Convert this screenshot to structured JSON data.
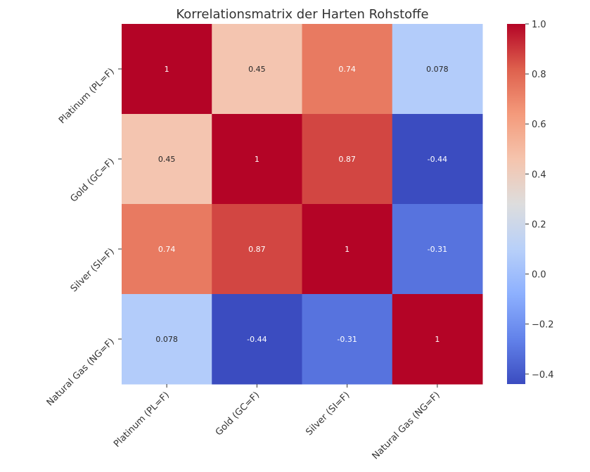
{
  "chart_data": {
    "type": "heatmap",
    "title": "Korrelationsmatrix der Harten Rohstoffe",
    "rows": [
      "Platinum (PL=F)",
      "Gold (GC=F)",
      "Silver (SI=F)",
      "Natural Gas (NG=F)"
    ],
    "columns": [
      "Platinum (PL=F)",
      "Gold (GC=F)",
      "Silver (SI=F)",
      "Natural Gas (NG=F)"
    ],
    "values": [
      [
        1,
        0.45,
        0.74,
        0.078
      ],
      [
        0.45,
        1,
        0.87,
        -0.44
      ],
      [
        0.74,
        0.87,
        1,
        -0.31
      ],
      [
        0.078,
        -0.44,
        -0.31,
        1
      ]
    ],
    "cell_labels": [
      [
        "1",
        "0.45",
        "0.74",
        "0.078"
      ],
      [
        "0.45",
        "1",
        "0.87",
        "-0.44"
      ],
      [
        "0.74",
        "0.87",
        "1",
        "-0.31"
      ],
      [
        "0.078",
        "-0.44",
        "-0.31",
        "1"
      ]
    ],
    "colormap": "coolwarm",
    "colorbar": {
      "vmin": -0.44,
      "vmax": 1.0,
      "ticks": [
        1.0,
        0.8,
        0.6,
        0.4,
        0.2,
        0.0,
        -0.2,
        -0.4
      ],
      "tick_labels": [
        "1.0",
        "0.8",
        "0.6",
        "0.4",
        "0.2",
        "0.0",
        "−0.2",
        "−0.4"
      ],
      "position": "right"
    },
    "grid": false
  }
}
